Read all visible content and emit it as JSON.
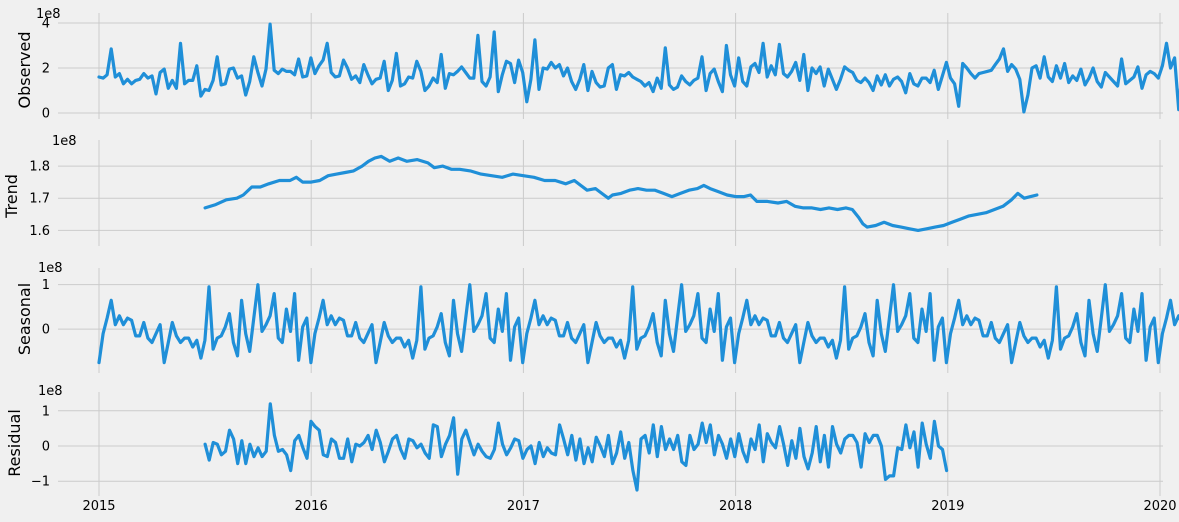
{
  "chart_data": [
    {
      "type": "line",
      "panel": "Observed",
      "ylabel": "Observed",
      "offset_text": "1e8",
      "ylim": [
        0,
        4
      ],
      "yticks": [
        0,
        2,
        4
      ],
      "ytick_labels": [
        "0",
        "2",
        "4"
      ],
      "xlim": [
        2015.0,
        2020.0
      ],
      "xticks": [
        2015,
        2016,
        2017,
        2018,
        2019,
        2020
      ],
      "xtick_labels": [],
      "grid": true,
      "color": "#1f8fd8",
      "x_start": 2015.0,
      "x_step": 0.0192,
      "values": [
        1.6,
        1.55,
        1.7,
        2.85,
        1.6,
        1.75,
        1.3,
        1.5,
        1.3,
        1.45,
        1.5,
        1.75,
        1.55,
        1.65,
        0.85,
        1.8,
        1.95,
        1.1,
        1.45,
        1.1,
        3.1,
        1.3,
        1.45,
        1.45,
        2.1,
        0.75,
        1.05,
        1.0,
        1.45,
        2.5,
        1.25,
        1.3,
        1.95,
        2.0,
        1.55,
        1.65,
        0.8,
        1.4,
        2.5,
        1.8,
        1.2,
        1.95,
        3.95,
        1.9,
        1.75,
        1.95,
        1.85,
        1.85,
        1.7,
        2.4,
        1.6,
        1.65,
        2.45,
        1.75,
        2.1,
        2.35,
        3.1,
        1.8,
        1.6,
        1.65,
        2.35,
        2.0,
        1.5,
        1.65,
        1.35,
        2.15,
        1.7,
        1.3,
        1.5,
        1.55,
        2.3,
        1.0,
        1.45,
        2.65,
        1.2,
        1.3,
        1.6,
        1.55,
        2.3,
        1.85,
        1.0,
        1.2,
        1.55,
        1.35,
        2.6,
        1.1,
        1.75,
        1.7,
        1.85,
        2.05,
        1.8,
        1.55,
        1.55,
        3.45,
        1.4,
        1.2,
        1.6,
        3.6,
        0.95,
        1.7,
        2.3,
        2.2,
        1.35,
        2.35,
        1.8,
        0.5,
        1.5,
        3.25,
        1.05,
        2.0,
        1.95,
        2.25,
        2.0,
        2.15,
        1.65,
        2.0,
        1.4,
        1.05,
        1.5,
        2.15,
        1.0,
        1.85,
        1.35,
        1.15,
        1.2,
        2.0,
        2.15,
        1.05,
        1.7,
        1.65,
        1.8,
        1.6,
        1.5,
        1.4,
        1.2,
        1.35,
        0.95,
        1.55,
        1.1,
        2.9,
        1.25,
        1.05,
        1.15,
        1.65,
        1.4,
        1.25,
        1.45,
        1.55,
        2.5,
        1.0,
        1.75,
        1.95,
        1.4,
        0.95,
        3.0,
        1.7,
        1.2,
        2.45,
        1.4,
        1.2,
        2.05,
        2.2,
        1.8,
        3.1,
        1.6,
        2.1,
        1.7,
        3.05,
        1.75,
        1.6,
        1.85,
        2.25,
        1.45,
        2.6,
        1.0,
        2.0,
        1.75,
        2.05,
        1.2,
        1.95,
        1.5,
        1.05,
        1.5,
        2.05,
        1.9,
        1.8,
        1.45,
        1.35,
        1.55,
        1.35,
        1.0,
        1.65,
        1.25,
        1.7,
        1.2,
        1.5,
        1.6,
        1.4,
        0.9,
        1.75,
        1.3,
        1.2,
        1.55,
        1.55,
        1.35,
        1.9,
        1.05,
        1.65,
        2.25,
        1.55,
        1.3,
        0.3,
        2.2,
        2.0,
        1.75,
        1.55,
        1.75,
        1.8,
        1.85,
        1.9,
        2.15,
        2.4,
        2.85,
        1.85,
        2.15,
        1.95,
        1.5,
        0.05,
        0.8,
        2.0,
        2.1,
        1.55,
        2.5,
        1.6,
        1.4,
        2.1,
        1.55,
        2.2,
        1.35,
        1.65,
        1.45,
        1.95,
        1.25,
        1.55,
        2.0,
        1.4,
        1.15,
        1.8,
        1.6,
        1.4,
        1.2,
        2.4,
        1.3,
        1.45,
        1.6,
        2.05,
        1.1,
        1.7,
        1.85,
        1.75,
        1.55,
        2.1,
        3.1,
        2.0,
        2.45,
        0.15,
        2.2,
        1.65,
        2.1,
        2.15
      ]
    },
    {
      "type": "line",
      "panel": "Trend",
      "ylabel": "Trend",
      "offset_text": "1e8",
      "ylim": [
        1.57,
        1.85
      ],
      "yticks": [
        1.6,
        1.7,
        1.8
      ],
      "ytick_labels": [
        "1.6",
        "1.7",
        "1.8"
      ],
      "xlim": [
        2015.0,
        2020.0
      ],
      "xticks": [
        2015,
        2016,
        2017,
        2018,
        2019,
        2020
      ],
      "xtick_labels": [],
      "grid": true,
      "color": "#1f8fd8",
      "points": [
        [
          2015.5,
          1.67
        ],
        [
          2015.55,
          1.68
        ],
        [
          2015.6,
          1.695
        ],
        [
          2015.65,
          1.7
        ],
        [
          2015.68,
          1.71
        ],
        [
          2015.72,
          1.735
        ],
        [
          2015.76,
          1.735
        ],
        [
          2015.8,
          1.745
        ],
        [
          2015.85,
          1.755
        ],
        [
          2015.9,
          1.755
        ],
        [
          2015.93,
          1.765
        ],
        [
          2015.96,
          1.75
        ],
        [
          2016.0,
          1.75
        ],
        [
          2016.04,
          1.755
        ],
        [
          2016.08,
          1.77
        ],
        [
          2016.12,
          1.775
        ],
        [
          2016.16,
          1.78
        ],
        [
          2016.2,
          1.785
        ],
        [
          2016.24,
          1.8
        ],
        [
          2016.27,
          1.815
        ],
        [
          2016.3,
          1.825
        ],
        [
          2016.33,
          1.83
        ],
        [
          2016.37,
          1.815
        ],
        [
          2016.41,
          1.825
        ],
        [
          2016.45,
          1.815
        ],
        [
          2016.5,
          1.82
        ],
        [
          2016.55,
          1.81
        ],
        [
          2016.58,
          1.795
        ],
        [
          2016.62,
          1.8
        ],
        [
          2016.66,
          1.79
        ],
        [
          2016.7,
          1.79
        ],
        [
          2016.75,
          1.785
        ],
        [
          2016.8,
          1.775
        ],
        [
          2016.85,
          1.77
        ],
        [
          2016.9,
          1.765
        ],
        [
          2016.95,
          1.775
        ],
        [
          2017.0,
          1.77
        ],
        [
          2017.05,
          1.765
        ],
        [
          2017.1,
          1.755
        ],
        [
          2017.15,
          1.755
        ],
        [
          2017.2,
          1.745
        ],
        [
          2017.24,
          1.755
        ],
        [
          2017.27,
          1.74
        ],
        [
          2017.3,
          1.725
        ],
        [
          2017.34,
          1.73
        ],
        [
          2017.38,
          1.71
        ],
        [
          2017.4,
          1.7
        ],
        [
          2017.42,
          1.71
        ],
        [
          2017.46,
          1.715
        ],
        [
          2017.5,
          1.725
        ],
        [
          2017.54,
          1.73
        ],
        [
          2017.58,
          1.725
        ],
        [
          2017.62,
          1.725
        ],
        [
          2017.66,
          1.715
        ],
        [
          2017.7,
          1.705
        ],
        [
          2017.74,
          1.715
        ],
        [
          2017.78,
          1.725
        ],
        [
          2017.82,
          1.73
        ],
        [
          2017.85,
          1.74
        ],
        [
          2017.88,
          1.73
        ],
        [
          2017.92,
          1.72
        ],
        [
          2017.96,
          1.71
        ],
        [
          2018.0,
          1.705
        ],
        [
          2018.04,
          1.705
        ],
        [
          2018.07,
          1.71
        ],
        [
          2018.1,
          1.69
        ],
        [
          2018.15,
          1.69
        ],
        [
          2018.2,
          1.685
        ],
        [
          2018.24,
          1.69
        ],
        [
          2018.28,
          1.675
        ],
        [
          2018.32,
          1.67
        ],
        [
          2018.36,
          1.67
        ],
        [
          2018.4,
          1.665
        ],
        [
          2018.44,
          1.67
        ],
        [
          2018.48,
          1.665
        ],
        [
          2018.52,
          1.67
        ],
        [
          2018.55,
          1.665
        ],
        [
          2018.58,
          1.64
        ],
        [
          2018.6,
          1.62
        ],
        [
          2018.62,
          1.61
        ],
        [
          2018.66,
          1.615
        ],
        [
          2018.7,
          1.625
        ],
        [
          2018.74,
          1.615
        ],
        [
          2018.78,
          1.61
        ],
        [
          2018.82,
          1.605
        ],
        [
          2018.86,
          1.6
        ],
        [
          2018.9,
          1.605
        ],
        [
          2018.94,
          1.61
        ],
        [
          2018.98,
          1.615
        ],
        [
          2019.02,
          1.625
        ],
        [
          2019.06,
          1.635
        ],
        [
          2019.1,
          1.645
        ],
        [
          2019.14,
          1.65
        ],
        [
          2019.18,
          1.655
        ],
        [
          2019.22,
          1.665
        ],
        [
          2019.26,
          1.675
        ],
        [
          2019.3,
          1.695
        ],
        [
          2019.33,
          1.715
        ],
        [
          2019.36,
          1.7
        ],
        [
          2019.39,
          1.705
        ],
        [
          2019.42,
          1.71
        ]
      ]
    },
    {
      "type": "line",
      "panel": "Seasonal",
      "ylabel": "Seasonal",
      "offset_text": "1e8",
      "ylim": [
        -0.85,
        1.15
      ],
      "yticks": [
        0,
        1
      ],
      "ytick_labels": [
        "0",
        "1"
      ],
      "xlim": [
        2015.0,
        2020.0
      ],
      "xticks": [
        2015,
        2016,
        2017,
        2018,
        2019,
        2020
      ],
      "xtick_labels": [],
      "grid": true,
      "color": "#1f8fd8",
      "period": 52,
      "repeats": 5.7,
      "x_start": 2015.0,
      "x_step": 0.0192,
      "values": [
        -0.75,
        -0.1,
        0.25,
        0.65,
        0.1,
        0.3,
        0.1,
        0.25,
        0.2,
        -0.15,
        -0.15,
        0.15,
        -0.2,
        -0.3,
        -0.1,
        0.1,
        -0.75,
        -0.3,
        0.15,
        -0.15,
        -0.3,
        -0.2,
        -0.2,
        -0.4,
        -0.25,
        -0.65,
        -0.25,
        0.95,
        -0.45,
        -0.2,
        -0.15,
        0.05,
        0.35,
        -0.3,
        -0.6,
        0.65,
        -0.1,
        -0.5,
        0.25,
        1.0,
        -0.05,
        0.1,
        0.3,
        0.8,
        -0.2,
        -0.3,
        0.45,
        -0.05,
        0.8,
        -0.7,
        0.05,
        0.25
      ]
    },
    {
      "type": "line",
      "panel": "Residual",
      "ylabel": "Residual",
      "offset_text": "1e8",
      "ylim": [
        -1.25,
        1.25
      ],
      "yticks": [
        -1,
        0,
        1
      ],
      "ytick_labels": [
        "−1",
        "0",
        "1"
      ],
      "xlim": [
        2015.0,
        2020.0
      ],
      "xticks": [
        2015,
        2016,
        2017,
        2018,
        2019,
        2020
      ],
      "xtick_labels": [
        "2015",
        "2016",
        "2017",
        "2018",
        "2019",
        "2020"
      ],
      "grid": true,
      "color": "#1f8fd8",
      "x_start": 2015.5,
      "x_step": 0.0192,
      "values": [
        0.05,
        -0.4,
        0.1,
        0.05,
        -0.25,
        -0.15,
        0.45,
        0.2,
        -0.5,
        0.15,
        -0.5,
        0.05,
        -0.3,
        -0.05,
        -0.3,
        -0.15,
        1.2,
        0.3,
        -0.15,
        -0.1,
        -0.25,
        -0.7,
        0.15,
        0.3,
        -0.05,
        -0.35,
        0.7,
        0.55,
        0.45,
        -0.25,
        -0.3,
        0.2,
        0.1,
        -0.35,
        -0.35,
        0.2,
        -0.45,
        0.05,
        0.0,
        0.1,
        0.3,
        -0.1,
        0.45,
        0.1,
        -0.45,
        -0.15,
        0.2,
        0.3,
        -0.1,
        -0.35,
        0.2,
        0.15,
        -0.05,
        0.05,
        -0.2,
        -0.35,
        0.6,
        0.55,
        -0.3,
        0.05,
        0.3,
        0.8,
        -0.8,
        0.2,
        0.45,
        0.1,
        -0.25,
        0.05,
        -0.15,
        -0.3,
        -0.35,
        -0.1,
        0.65,
        0.05,
        -0.25,
        -0.05,
        0.2,
        0.15,
        -0.35,
        -0.1,
        0.0,
        -0.5,
        0.1,
        -0.3,
        -0.05,
        -0.2,
        -0.25,
        0.6,
        0.2,
        -0.25,
        0.3,
        -0.4,
        0.2,
        -0.5,
        -0.05,
        -0.45,
        0.25,
        0.0,
        -0.3,
        0.3,
        -0.5,
        -0.2,
        0.4,
        -0.35,
        0.1,
        -0.7,
        -1.25,
        0.2,
        0.3,
        -0.2,
        0.6,
        -0.3,
        0.55,
        -0.1,
        0.2,
        -0.1,
        0.3,
        -0.45,
        -0.55,
        0.3,
        -0.1,
        0.05,
        0.65,
        0.1,
        0.6,
        -0.25,
        0.3,
        0.05,
        -0.35,
        0.2,
        -0.3,
        0.35,
        -0.15,
        -0.45,
        0.2,
        -0.1,
        0.6,
        -0.45,
        0.35,
        0.1,
        -0.05,
        0.55,
        0.05,
        -0.55,
        0.15,
        -0.35,
        0.5,
        -0.3,
        -0.65,
        -0.2,
        0.55,
        -0.45,
        0.3,
        -0.6,
        0.55,
        0.05,
        -0.2,
        0.2,
        0.3,
        0.3,
        0.1,
        -0.6,
        0.35,
        0.1,
        0.3,
        0.3,
        0.0,
        -0.95,
        -0.85,
        -0.85,
        -0.05,
        -0.1,
        0.6,
        -0.05,
        0.4,
        -0.6,
        0.65,
        0.05,
        -0.35,
        0.7,
        0.0,
        -0.1,
        -0.7
      ]
    }
  ]
}
